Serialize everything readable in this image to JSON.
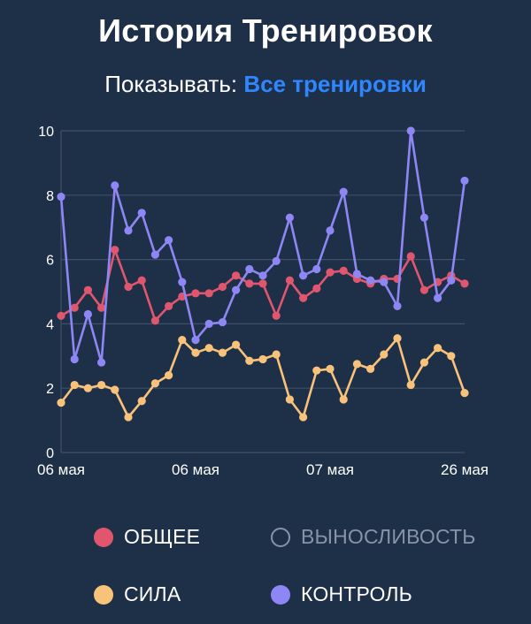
{
  "header": {
    "title": "История Тренировок",
    "filter_label": "Показывать: ",
    "filter_value": "Все тренировки"
  },
  "colors": {
    "background": "#1e3048",
    "accent": "#2f86ff",
    "grid": "#3f5068",
    "obshchee": "#e0566f",
    "sila": "#f9c27a",
    "kontrol": "#8f86f5",
    "inactive": "#8794a6"
  },
  "legend": [
    {
      "key": "obshchee",
      "label": "ОБЩЕЕ",
      "active": true
    },
    {
      "key": "vynoslivost",
      "label": "ВЫНОСЛИВОСТЬ",
      "active": false
    },
    {
      "key": "sila",
      "label": "СИЛА",
      "active": true
    },
    {
      "key": "kontrol",
      "label": "КОНТРОЛЬ",
      "active": true
    }
  ],
  "chart_data": {
    "type": "line",
    "x_tick_labels": [
      "06 мая",
      "06 мая",
      "07 мая",
      "26 мая"
    ],
    "x_tick_index": [
      0,
      10,
      20,
      30
    ],
    "y_ticks": [
      0,
      2,
      4,
      6,
      8,
      10
    ],
    "ylim": [
      0,
      10
    ],
    "grid": true,
    "legend_placement": "bottom",
    "series": [
      {
        "name": "ОБЩЕЕ",
        "key": "obshchee",
        "values": [
          4.25,
          4.5,
          5.05,
          4.5,
          6.3,
          5.15,
          5.35,
          4.1,
          4.55,
          4.85,
          4.95,
          4.95,
          5.15,
          5.5,
          5.25,
          5.25,
          4.25,
          5.35,
          4.8,
          5.1,
          5.6,
          5.65,
          5.4,
          5.25,
          5.4,
          5.4,
          6.1,
          5.05,
          5.3,
          5.5,
          5.25
        ]
      },
      {
        "name": "СИЛА",
        "key": "sila",
        "values": [
          1.55,
          2.1,
          2.0,
          2.1,
          1.95,
          1.1,
          1.6,
          2.15,
          2.4,
          3.5,
          3.1,
          3.25,
          3.1,
          3.35,
          2.85,
          2.9,
          3.05,
          1.65,
          1.1,
          2.55,
          2.6,
          1.65,
          2.75,
          2.6,
          3.05,
          3.55,
          2.1,
          2.8,
          3.25,
          3.0,
          1.85
        ]
      },
      {
        "name": "КОНТРОЛЬ",
        "key": "kontrol",
        "values": [
          7.95,
          2.9,
          4.3,
          2.8,
          8.3,
          6.9,
          7.45,
          6.15,
          6.6,
          5.3,
          3.5,
          4.0,
          4.05,
          5.05,
          5.7,
          5.5,
          5.95,
          7.3,
          5.5,
          5.7,
          6.9,
          8.1,
          5.55,
          5.35,
          5.3,
          4.55,
          10.0,
          7.3,
          4.8,
          5.35,
          8.45
        ]
      }
    ]
  }
}
